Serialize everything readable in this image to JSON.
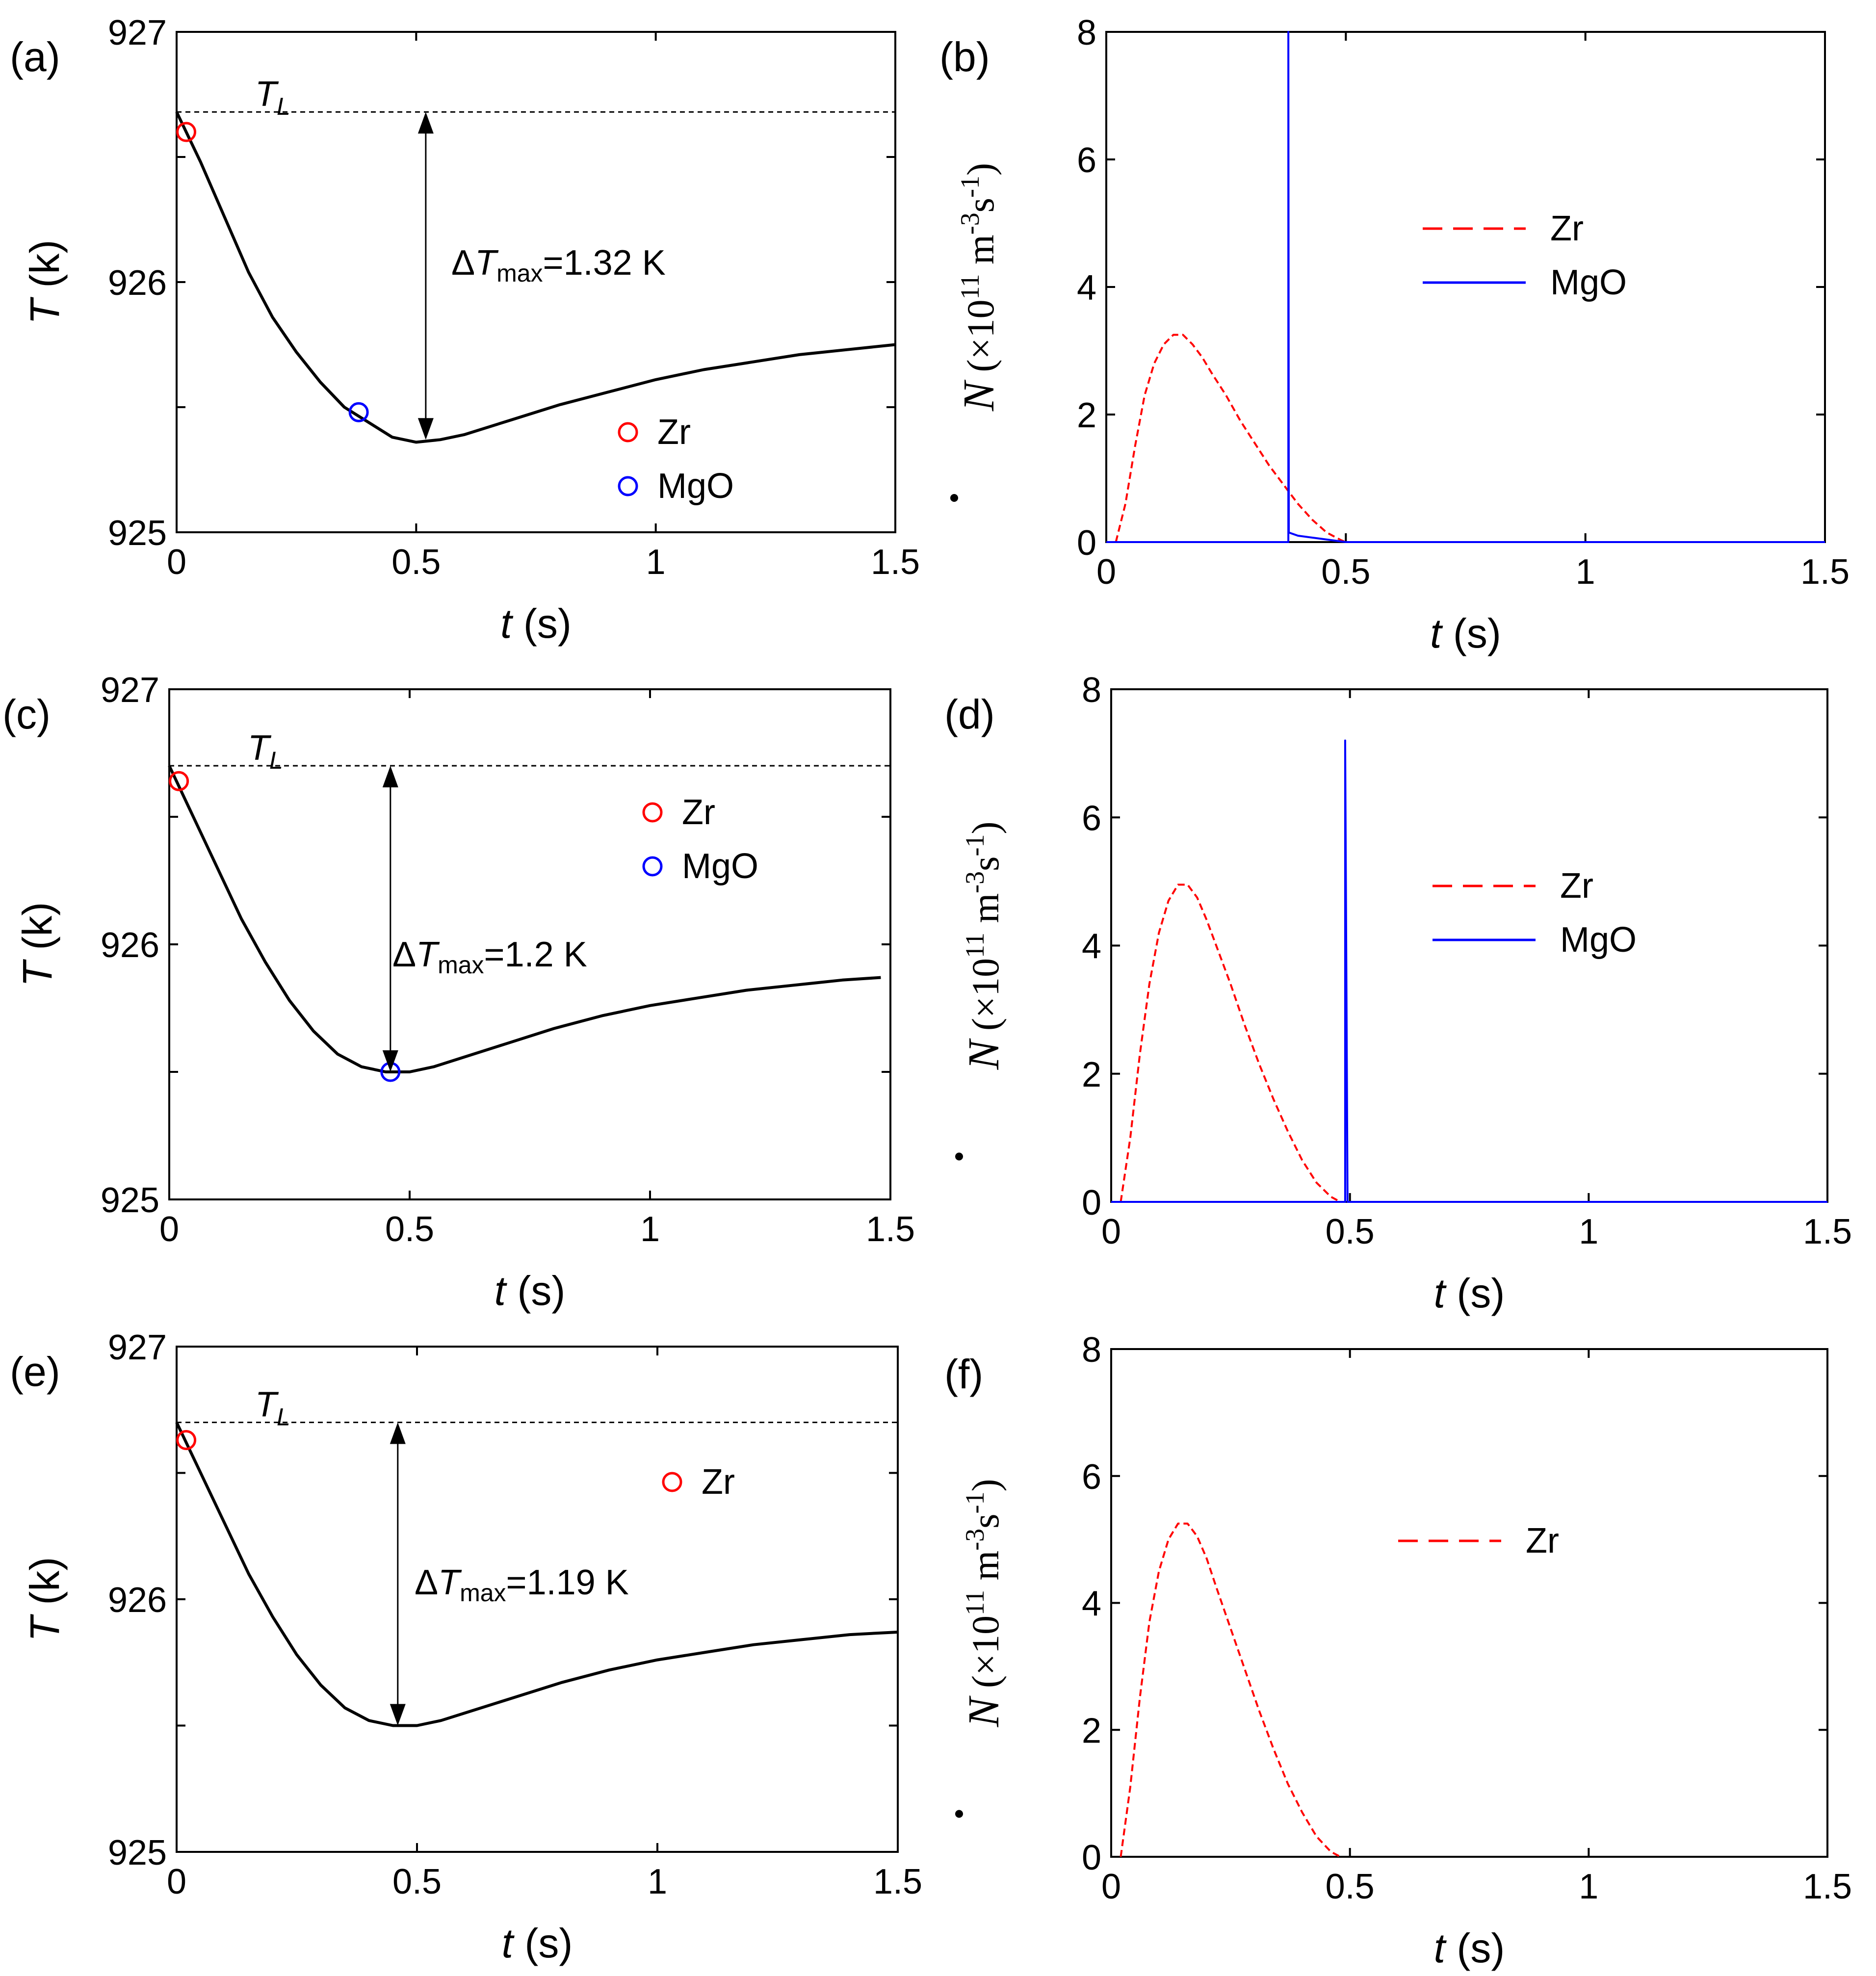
{
  "chart_data": [
    {
      "panel": "a",
      "type": "line",
      "panel_label": "(a)",
      "xlabel_var": "t",
      "xlabel_unit": " (s)",
      "ylabel_var": "T",
      "ylabel_unit": " (k)",
      "xlim": [
        0,
        1.5
      ],
      "ylim": [
        925,
        927
      ],
      "xticks": [
        0,
        0.5,
        1,
        1.5
      ],
      "xtick_labels": [
        "0",
        "0.5",
        "1",
        "1.5"
      ],
      "yticks": [
        925,
        926,
        927
      ],
      "ytick_labels": [
        "925",
        "926",
        "927"
      ],
      "liquidus": {
        "label_var": "T",
        "label_sub": "L",
        "value": 926.68
      },
      "series": [
        {
          "color": "#000000",
          "x": [
            0,
            0.05,
            0.1,
            0.15,
            0.2,
            0.25,
            0.3,
            0.35,
            0.4,
            0.45,
            0.5,
            0.55,
            0.6,
            0.7,
            0.8,
            0.9,
            1.0,
            1.1,
            1.2,
            1.3,
            1.4,
            1.5
          ],
          "y": [
            926.68,
            926.48,
            926.26,
            926.04,
            925.86,
            925.72,
            925.6,
            925.5,
            925.44,
            925.38,
            925.36,
            925.37,
            925.39,
            925.45,
            925.51,
            925.56,
            925.61,
            925.65,
            925.68,
            925.71,
            925.73,
            925.75
          ]
        }
      ],
      "markers": [
        {
          "name": "Zr",
          "color": "#ff0000",
          "x": 0.02,
          "y": 926.6
        },
        {
          "name": "MgO",
          "color": "#0000ff",
          "x": 0.38,
          "y": 925.48
        }
      ],
      "arrow": {
        "x": 0.52,
        "y_top": 926.68,
        "y_bottom": 925.37
      },
      "annotation": {
        "var": "ΔT",
        "sub": "max",
        "text": "=1.32 K"
      },
      "legend": {
        "placement": "bottom-right",
        "entries": [
          "Zr",
          "MgO"
        ]
      }
    },
    {
      "panel": "b",
      "type": "line",
      "panel_label": "(b)",
      "xlabel_var": "t",
      "xlabel_unit": " (s)",
      "ylabel_text": "(×10",
      "ylabel_exp": "11",
      "ylabel_rest": " m",
      "ylabel_units": [
        "-3",
        "s",
        "-1",
        ")"
      ],
      "ylabel_var": "N",
      "xlim": [
        0,
        1.5
      ],
      "ylim": [
        0,
        8
      ],
      "xticks": [
        0,
        0.5,
        1,
        1.5
      ],
      "xtick_labels": [
        "0",
        "0.5",
        "1",
        "1.5"
      ],
      "yticks": [
        0,
        2,
        4,
        6,
        8
      ],
      "ytick_labels": [
        "0",
        "2",
        "4",
        "6",
        "8"
      ],
      "series": [
        {
          "name": "Zr",
          "color": "#ff0000",
          "dash": true,
          "x": [
            0.02,
            0.04,
            0.06,
            0.08,
            0.1,
            0.12,
            0.14,
            0.16,
            0.18,
            0.2,
            0.22,
            0.25,
            0.28,
            0.31,
            0.34,
            0.37,
            0.4,
            0.43,
            0.46,
            0.49,
            0.5
          ],
          "y": [
            0,
            0.6,
            1.5,
            2.3,
            2.8,
            3.1,
            3.25,
            3.25,
            3.1,
            2.9,
            2.65,
            2.3,
            1.9,
            1.55,
            1.2,
            0.9,
            0.6,
            0.35,
            0.15,
            0.03,
            0
          ]
        },
        {
          "name": "MgO",
          "color": "#0000ff",
          "dash": false,
          "x": [
            0,
            0.38,
            0.38,
            0.381,
            0.4,
            0.45,
            0.5,
            1.5
          ],
          "y": [
            0,
            0,
            8.0,
            0.15,
            0.1,
            0.05,
            0,
            0
          ]
        }
      ],
      "legend": {
        "placement": "upper-center",
        "entries": [
          "Zr",
          "MgO"
        ]
      }
    },
    {
      "panel": "c",
      "type": "line",
      "panel_label": "(c)",
      "xlabel_var": "t",
      "xlabel_unit": " (s)",
      "ylabel_var": "T",
      "ylabel_unit": " (k)",
      "xlim": [
        0,
        1.5
      ],
      "ylim": [
        925,
        927
      ],
      "xticks": [
        0,
        0.5,
        1,
        1.5
      ],
      "xtick_labels": [
        "0",
        "0.5",
        "1",
        "1.5"
      ],
      "yticks": [
        925,
        926,
        927
      ],
      "ytick_labels": [
        "925",
        "926",
        "927"
      ],
      "liquidus": {
        "label_var": "T",
        "label_sub": "L",
        "value": 926.7
      },
      "series": [
        {
          "color": "#000000",
          "x": [
            0,
            0.05,
            0.1,
            0.15,
            0.2,
            0.25,
            0.3,
            0.35,
            0.4,
            0.45,
            0.5,
            0.55,
            0.6,
            0.7,
            0.8,
            0.9,
            1.0,
            1.1,
            1.2,
            1.3,
            1.4,
            1.48
          ],
          "y": [
            926.7,
            926.5,
            926.3,
            926.1,
            925.93,
            925.78,
            925.66,
            925.57,
            925.52,
            925.5,
            925.5,
            925.52,
            925.55,
            925.61,
            925.67,
            925.72,
            925.76,
            925.79,
            925.82,
            925.84,
            925.86,
            925.87
          ]
        }
      ],
      "markers": [
        {
          "name": "Zr",
          "color": "#ff0000",
          "x": 0.02,
          "y": 926.64
        },
        {
          "name": "MgO",
          "color": "#0000ff",
          "x": 0.46,
          "y": 925.5
        }
      ],
      "arrow": {
        "x": 0.46,
        "y_top": 926.7,
        "y_bottom": 925.5
      },
      "annotation": {
        "var": "ΔT",
        "sub": "max",
        "text": "=1.2 K"
      },
      "legend": {
        "placement": "upper-right",
        "entries": [
          "Zr",
          "MgO"
        ]
      }
    },
    {
      "panel": "d",
      "type": "line",
      "panel_label": "(d)",
      "xlabel_var": "t",
      "xlabel_unit": " (s)",
      "ylabel_text": "(×10",
      "ylabel_exp": "11",
      "ylabel_rest": " m",
      "ylabel_units": [
        "-3",
        "s",
        "-1",
        ")"
      ],
      "ylabel_var": "N",
      "xlim": [
        0,
        1.5
      ],
      "ylim": [
        0,
        8
      ],
      "xticks": [
        0,
        0.5,
        1,
        1.5
      ],
      "xtick_labels": [
        "0",
        "0.5",
        "1",
        "1.5"
      ],
      "yticks": [
        0,
        2,
        4,
        6,
        8
      ],
      "ytick_labels": [
        "0",
        "2",
        "4",
        "6",
        "8"
      ],
      "series": [
        {
          "name": "Zr",
          "color": "#ff0000",
          "dash": true,
          "x": [
            0.02,
            0.04,
            0.06,
            0.08,
            0.1,
            0.12,
            0.14,
            0.16,
            0.18,
            0.2,
            0.22,
            0.25,
            0.28,
            0.31,
            0.34,
            0.37,
            0.4,
            0.43,
            0.46,
            0.48
          ],
          "y": [
            0,
            1.0,
            2.3,
            3.4,
            4.2,
            4.7,
            4.95,
            4.95,
            4.75,
            4.4,
            4.0,
            3.4,
            2.75,
            2.15,
            1.6,
            1.1,
            0.65,
            0.3,
            0.08,
            0
          ]
        },
        {
          "name": "MgO",
          "color": "#0000ff",
          "dash": false,
          "x": [
            0,
            0.49,
            0.49,
            0.495,
            1.5
          ],
          "y": [
            0,
            0,
            7.2,
            0,
            0
          ]
        }
      ],
      "legend": {
        "placement": "center-right",
        "entries": [
          "Zr",
          "MgO"
        ]
      }
    },
    {
      "panel": "e",
      "type": "line",
      "panel_label": "(e)",
      "xlabel_var": "t",
      "xlabel_unit": " (s)",
      "ylabel_var": "T",
      "ylabel_unit": " (k)",
      "xlim": [
        0,
        1.5
      ],
      "ylim": [
        925,
        927
      ],
      "xticks": [
        0,
        0.5,
        1,
        1.5
      ],
      "xtick_labels": [
        "0",
        "0.5",
        "1",
        "1.5"
      ],
      "yticks": [
        925,
        926,
        927
      ],
      "ytick_labels": [
        "925",
        "926",
        "927"
      ],
      "liquidus": {
        "label_var": "T",
        "label_sub": "L",
        "value": 926.7
      },
      "series": [
        {
          "color": "#000000",
          "x": [
            0,
            0.05,
            0.1,
            0.15,
            0.2,
            0.25,
            0.3,
            0.35,
            0.4,
            0.45,
            0.5,
            0.55,
            0.6,
            0.7,
            0.8,
            0.9,
            1.0,
            1.1,
            1.2,
            1.3,
            1.4,
            1.5
          ],
          "y": [
            926.7,
            926.5,
            926.3,
            926.1,
            925.93,
            925.78,
            925.66,
            925.57,
            925.52,
            925.5,
            925.5,
            925.52,
            925.55,
            925.61,
            925.67,
            925.72,
            925.76,
            925.79,
            925.82,
            925.84,
            925.86,
            925.87
          ]
        }
      ],
      "markers": [
        {
          "name": "Zr",
          "color": "#ff0000",
          "x": 0.02,
          "y": 926.63
        }
      ],
      "arrow": {
        "x": 0.46,
        "y_top": 926.7,
        "y_bottom": 925.5
      },
      "annotation": {
        "var": "ΔT",
        "sub": "max",
        "text": "=1.19 K"
      },
      "legend": {
        "placement": "upper-right",
        "entries": [
          "Zr"
        ]
      }
    },
    {
      "panel": "f",
      "type": "line",
      "panel_label": "(f)",
      "xlabel_var": "t",
      "xlabel_unit": " (s)",
      "ylabel_text": "(×10",
      "ylabel_exp": "11",
      "ylabel_rest": " m",
      "ylabel_units": [
        "-3",
        "s",
        "-1",
        ")"
      ],
      "ylabel_var": "N",
      "xlim": [
        0,
        1.5
      ],
      "ylim": [
        0,
        8
      ],
      "xticks": [
        0,
        0.5,
        1,
        1.5
      ],
      "xtick_labels": [
        "0",
        "0.5",
        "1",
        "1.5"
      ],
      "yticks": [
        0,
        2,
        4,
        6,
        8
      ],
      "ytick_labels": [
        "0",
        "2",
        "4",
        "6",
        "8"
      ],
      "series": [
        {
          "name": "Zr",
          "color": "#ff0000",
          "dash": true,
          "x": [
            0.02,
            0.04,
            0.06,
            0.08,
            0.1,
            0.12,
            0.14,
            0.16,
            0.18,
            0.2,
            0.22,
            0.25,
            0.28,
            0.31,
            0.34,
            0.37,
            0.4,
            0.43,
            0.46,
            0.48
          ],
          "y": [
            0,
            1.1,
            2.5,
            3.7,
            4.5,
            5.0,
            5.25,
            5.25,
            5.05,
            4.7,
            4.25,
            3.6,
            2.95,
            2.3,
            1.7,
            1.15,
            0.7,
            0.32,
            0.08,
            0
          ]
        }
      ],
      "legend": {
        "placement": "center-right",
        "entries": [
          "Zr"
        ]
      }
    }
  ]
}
